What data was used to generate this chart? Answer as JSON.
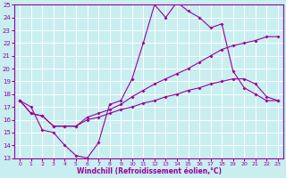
{
  "bg_color": "#c8eef0",
  "line_color": "#990099",
  "grid_color": "#ffffff",
  "xlabel": "Windchill (Refroidissement éolien,°C)",
  "xlabel_color": "#990099",
  "xlim": [
    -0.5,
    23.5
  ],
  "ylim": [
    13,
    25
  ],
  "yticks": [
    13,
    14,
    15,
    16,
    17,
    18,
    19,
    20,
    21,
    22,
    23,
    24,
    25
  ],
  "xticks": [
    0,
    1,
    2,
    3,
    4,
    5,
    6,
    7,
    8,
    9,
    10,
    11,
    12,
    13,
    14,
    15,
    16,
    17,
    18,
    19,
    20,
    21,
    22,
    23
  ],
  "line1_x": [
    0,
    1,
    2,
    3,
    4,
    5,
    6,
    7,
    8,
    9,
    10,
    11,
    12,
    13,
    14,
    15,
    16,
    17,
    18,
    19,
    20,
    21,
    22,
    23
  ],
  "line1_y": [
    17.5,
    17.0,
    15.2,
    15.0,
    14.0,
    13.2,
    13.0,
    14.2,
    17.2,
    17.5,
    19.2,
    22.0,
    25.0,
    24.0,
    25.2,
    24.5,
    24.0,
    23.2,
    23.5,
    19.8,
    18.5,
    18.0,
    17.5,
    17.5
  ],
  "line2_x": [
    0,
    1,
    2,
    3,
    4,
    5,
    6,
    7,
    8,
    9,
    10,
    11,
    12,
    13,
    14,
    15,
    16,
    17,
    18,
    19,
    20,
    21,
    22,
    23
  ],
  "line2_y": [
    17.5,
    16.5,
    16.3,
    15.5,
    15.5,
    15.5,
    16.2,
    16.5,
    16.8,
    17.2,
    17.8,
    18.3,
    18.8,
    19.2,
    19.6,
    20.0,
    20.5,
    21.0,
    21.5,
    21.8,
    22.0,
    22.2,
    22.5,
    22.5
  ],
  "line3_x": [
    0,
    1,
    2,
    3,
    4,
    5,
    6,
    7,
    8,
    9,
    10,
    11,
    12,
    13,
    14,
    15,
    16,
    17,
    18,
    19,
    20,
    21,
    22,
    23
  ],
  "line3_y": [
    17.5,
    16.5,
    16.3,
    15.5,
    15.5,
    15.5,
    16.0,
    16.2,
    16.5,
    16.8,
    17.0,
    17.3,
    17.5,
    17.8,
    18.0,
    18.3,
    18.5,
    18.8,
    19.0,
    19.2,
    19.2,
    18.8,
    17.8,
    17.5
  ],
  "tick_fontsize": 5,
  "xlabel_fontsize": 5.5,
  "marker_size": 2.0,
  "line_width": 0.8
}
